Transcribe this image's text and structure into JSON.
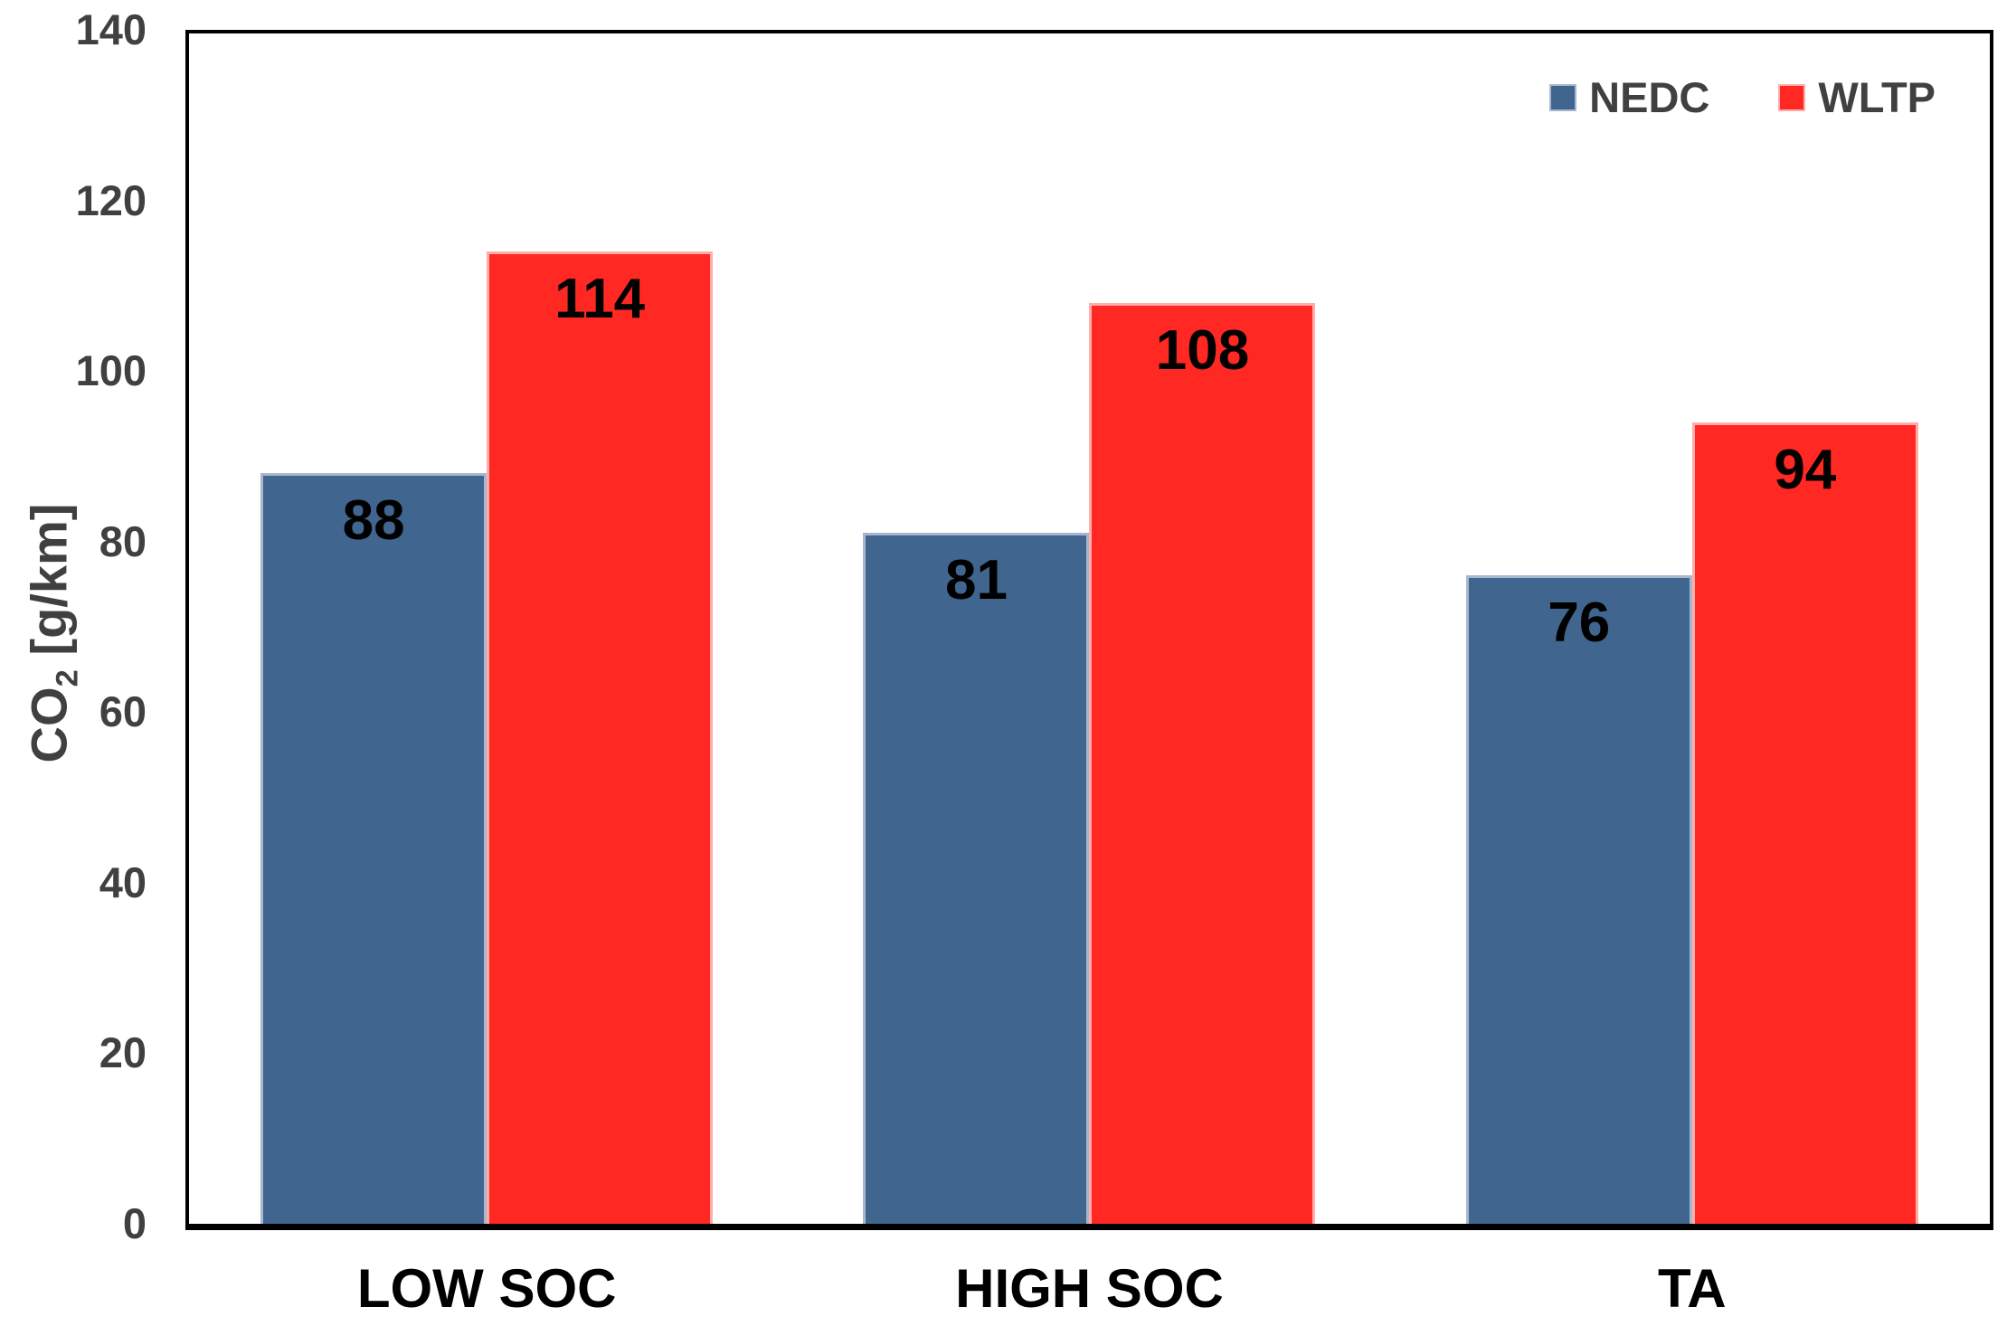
{
  "chart_data": {
    "type": "bar",
    "title": "",
    "categories": [
      "LOW SOC",
      "HIGH SOC",
      "TA"
    ],
    "series": [
      {
        "name": "NEDC",
        "color": "#40658F",
        "border_color": "#A9B7CC",
        "values": [
          88,
          81,
          76
        ]
      },
      {
        "name": "WLTP",
        "color": "#FF2823",
        "border_color": "#FFADAB",
        "values": [
          114,
          108,
          94
        ]
      }
    ],
    "ylabel": "CO2 [g/km]",
    "ylabel_parts": {
      "main": "CO",
      "sub": "2",
      "rest": " [g/km]"
    },
    "ylim": [
      0,
      140
    ],
    "yticks": [
      0,
      20,
      40,
      60,
      80,
      100,
      120,
      140
    ],
    "grid": false,
    "legend_position": "top-right-inside",
    "value_labels": true,
    "bar_label_color": "#000000",
    "axis_text_color": "#404040",
    "axis_line_color": "#000000",
    "plot_background": "#FFFFFF"
  }
}
